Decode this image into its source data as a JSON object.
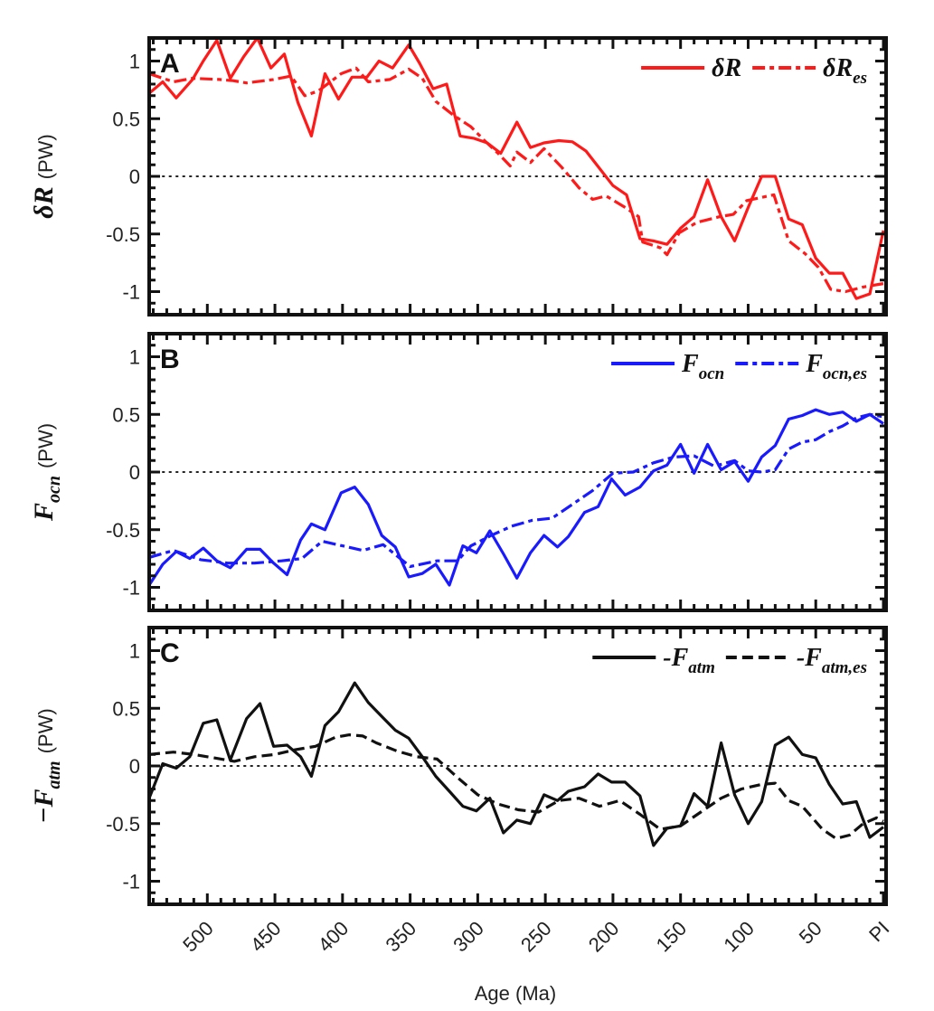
{
  "figure": {
    "xlabel": "Age (Ma)",
    "x_tick_labels": [
      "500",
      "450",
      "400",
      "350",
      "300",
      "250",
      "200",
      "150",
      "100",
      "50",
      "PI"
    ]
  },
  "chart_data": [
    {
      "type": "line",
      "panel": "A",
      "ylabel_symbol": "δR",
      "ylabel_unit": "(PW)",
      "xlabel": "Age (Ma)",
      "xlim": [
        543,
        0
      ],
      "ylim": [
        -1.2,
        1.2
      ],
      "y_ticks": [
        1,
        0.5,
        0,
        -0.5,
        -1
      ],
      "y_tick_labels": [
        "1",
        "0.5",
        "0",
        "-0.5",
        "-1"
      ],
      "zero_line": "dotted",
      "legend_position": "top-right",
      "color": "#ff1a1a",
      "series": [
        {
          "name": "δR",
          "legend_main": "δR",
          "legend_sub": "",
          "style": "solid",
          "x": [
            543,
            533,
            523,
            511,
            503,
            493,
            483,
            473,
            463,
            453,
            443,
            433,
            423,
            413,
            403,
            393,
            382,
            373,
            363,
            351,
            343,
            333,
            323,
            313,
            303,
            293,
            283,
            271,
            261,
            251,
            240,
            230,
            220,
            210,
            200,
            190,
            180,
            170,
            160,
            150,
            140,
            130,
            120,
            110,
            100,
            90,
            80,
            70,
            60,
            50,
            40,
            30,
            20,
            10,
            0
          ],
          "y": [
            0.72,
            0.82,
            0.68,
            0.84,
            1.0,
            1.18,
            0.85,
            1.04,
            1.2,
            0.94,
            1.06,
            0.64,
            0.35,
            0.89,
            0.67,
            0.86,
            0.86,
            1.0,
            0.94,
            1.14,
            0.98,
            0.76,
            0.8,
            0.35,
            0.33,
            0.29,
            0.2,
            0.47,
            0.25,
            0.29,
            0.31,
            0.3,
            0.22,
            0.07,
            -0.08,
            -0.16,
            -0.54,
            -0.56,
            -0.59,
            -0.45,
            -0.35,
            -0.03,
            -0.35,
            -0.56,
            -0.27,
            0.0,
            0.0,
            -0.37,
            -0.42,
            -0.71,
            -0.84,
            -0.84,
            -1.06,
            -1.02,
            -0.47
          ]
        },
        {
          "name": "δR_es",
          "legend_main": "δR",
          "legend_sub": "es",
          "style": "dashdot",
          "x": [
            543,
            525,
            511,
            491,
            481,
            471,
            451,
            438,
            428,
            418,
            401,
            390,
            381,
            365,
            351,
            341,
            331,
            318,
            305,
            295,
            285,
            276,
            271,
            261,
            251,
            238,
            225,
            215,
            205,
            191,
            181,
            178,
            165,
            160,
            151,
            138,
            121,
            111,
            101,
            81,
            70,
            58,
            48,
            39,
            28,
            15,
            0
          ],
          "y": [
            0.89,
            0.82,
            0.85,
            0.84,
            0.83,
            0.81,
            0.84,
            0.87,
            0.7,
            0.74,
            0.89,
            0.94,
            0.82,
            0.84,
            0.93,
            0.85,
            0.65,
            0.53,
            0.43,
            0.31,
            0.2,
            0.09,
            0.21,
            0.12,
            0.24,
            0.08,
            -0.1,
            -0.2,
            -0.17,
            -0.27,
            -0.35,
            -0.57,
            -0.62,
            -0.68,
            -0.49,
            -0.4,
            -0.35,
            -0.33,
            -0.21,
            -0.16,
            -0.56,
            -0.67,
            -0.79,
            -0.98,
            -1.0,
            -0.96,
            -0.93
          ]
        }
      ]
    },
    {
      "type": "line",
      "panel": "B",
      "ylabel_symbol": "F",
      "ylabel_sub": "ocn",
      "ylabel_unit": "(PW)",
      "xlabel": "Age (Ma)",
      "xlim": [
        543,
        0
      ],
      "ylim": [
        -1.2,
        1.2
      ],
      "y_ticks": [
        1,
        0.5,
        0,
        -0.5,
        -1
      ],
      "y_tick_labels": [
        "1",
        "0.5",
        "0",
        "-0.5",
        "-1"
      ],
      "zero_line": "dotted",
      "legend_position": "top-right",
      "color": "#1a1aff",
      "series": [
        {
          "name": "F_ocn",
          "legend_main": "F",
          "legend_sub": "ocn",
          "style": "solid",
          "x": [
            543,
            533,
            523,
            513,
            503,
            493,
            483,
            471,
            461,
            451,
            441,
            431,
            423,
            413,
            401,
            391,
            381,
            371,
            361,
            351,
            341,
            331,
            321,
            311,
            301,
            291,
            281,
            271,
            261,
            251,
            241,
            233,
            221,
            211,
            201,
            191,
            180,
            170,
            160,
            150,
            140,
            130,
            120,
            110,
            100,
            90,
            80,
            70,
            60,
            50,
            40,
            30,
            20,
            10,
            0
          ],
          "y": [
            -0.98,
            -0.8,
            -0.69,
            -0.75,
            -0.66,
            -0.77,
            -0.83,
            -0.67,
            -0.67,
            -0.79,
            -0.89,
            -0.59,
            -0.45,
            -0.5,
            -0.18,
            -0.13,
            -0.28,
            -0.55,
            -0.65,
            -0.91,
            -0.88,
            -0.8,
            -0.98,
            -0.64,
            -0.7,
            -0.51,
            -0.71,
            -0.92,
            -0.7,
            -0.55,
            -0.65,
            -0.56,
            -0.35,
            -0.3,
            -0.06,
            -0.2,
            -0.13,
            0.01,
            0.06,
            0.24,
            -0.01,
            0.24,
            0.02,
            0.09,
            -0.08,
            0.13,
            0.23,
            0.46,
            0.49,
            0.54,
            0.5,
            0.52,
            0.44,
            0.5,
            0.42
          ]
        },
        {
          "name": "F_ocn,es",
          "legend_main": "F",
          "legend_sub": "ocn,es",
          "style": "dashdot",
          "x": [
            543,
            525,
            505,
            485,
            465,
            445,
            430,
            415,
            400,
            385,
            370,
            350,
            330,
            315,
            305,
            290,
            275,
            260,
            245,
            230,
            215,
            200,
            185,
            170,
            155,
            140,
            125,
            110,
            100,
            90,
            80,
            70,
            60,
            50,
            40,
            30,
            20,
            10,
            0
          ],
          "y": [
            -0.74,
            -0.68,
            -0.76,
            -0.79,
            -0.79,
            -0.77,
            -0.75,
            -0.6,
            -0.64,
            -0.68,
            -0.63,
            -0.82,
            -0.77,
            -0.77,
            -0.64,
            -0.55,
            -0.47,
            -0.42,
            -0.4,
            -0.28,
            -0.16,
            -0.01,
            0.0,
            0.08,
            0.13,
            0.14,
            0.05,
            0.1,
            0.01,
            0.0,
            0.02,
            0.2,
            0.26,
            0.28,
            0.35,
            0.4,
            0.47,
            0.5,
            0.48
          ]
        }
      ]
    },
    {
      "type": "line",
      "panel": "C",
      "ylabel_symbol": "−F",
      "ylabel_sub": "atm",
      "ylabel_unit": "(PW)",
      "xlabel": "Age (Ma)",
      "xlim": [
        543,
        0
      ],
      "ylim": [
        -1.2,
        1.2
      ],
      "y_ticks": [
        1,
        0.5,
        0,
        -0.5,
        -1
      ],
      "y_tick_labels": [
        "1",
        "0.5",
        "0",
        "-0.5",
        "-1"
      ],
      "zero_line": "dotted",
      "legend_position": "top-right",
      "color": "#111111",
      "series": [
        {
          "name": "-F_atm",
          "legend_main": "-F",
          "legend_sub": "atm",
          "style": "solid",
          "x": [
            543,
            533,
            523,
            513,
            503,
            493,
            483,
            471,
            461,
            451,
            441,
            431,
            423,
            413,
            403,
            391,
            381,
            371,
            361,
            351,
            341,
            331,
            321,
            311,
            301,
            291,
            281,
            271,
            261,
            251,
            241,
            233,
            221,
            211,
            201,
            191,
            180,
            170,
            160,
            150,
            140,
            130,
            120,
            110,
            100,
            90,
            80,
            70,
            60,
            50,
            40,
            30,
            20,
            10,
            0
          ],
          "y": [
            -0.28,
            0.02,
            -0.02,
            0.08,
            0.37,
            0.4,
            0.05,
            0.41,
            0.54,
            0.17,
            0.18,
            0.08,
            -0.09,
            0.35,
            0.47,
            0.72,
            0.55,
            0.43,
            0.31,
            0.24,
            0.08,
            -0.09,
            -0.22,
            -0.35,
            -0.39,
            -0.28,
            -0.58,
            -0.47,
            -0.5,
            -0.25,
            -0.3,
            -0.22,
            -0.18,
            -0.07,
            -0.14,
            -0.14,
            -0.26,
            -0.69,
            -0.54,
            -0.52,
            -0.24,
            -0.35,
            0.2,
            -0.25,
            -0.5,
            -0.31,
            0.18,
            0.25,
            0.1,
            0.07,
            -0.16,
            -0.33,
            -0.31,
            -0.62,
            -0.53
          ]
        },
        {
          "name": "-F_atm,es",
          "legend_main": "-F",
          "legend_sub": "atm,es",
          "style": "dashed",
          "x": [
            543,
            525,
            510,
            495,
            480,
            465,
            450,
            435,
            420,
            405,
            395,
            385,
            375,
            360,
            345,
            330,
            315,
            300,
            285,
            270,
            255,
            240,
            225,
            210,
            195,
            180,
            165,
            150,
            135,
            120,
            105,
            90,
            80,
            70,
            60,
            45,
            35,
            25,
            15,
            5,
            0
          ],
          "y": [
            0.1,
            0.12,
            0.1,
            0.07,
            0.04,
            0.08,
            0.1,
            0.14,
            0.17,
            0.25,
            0.27,
            0.26,
            0.2,
            0.13,
            0.08,
            0.06,
            -0.1,
            -0.25,
            -0.33,
            -0.38,
            -0.4,
            -0.3,
            -0.28,
            -0.35,
            -0.3,
            -0.42,
            -0.55,
            -0.52,
            -0.4,
            -0.28,
            -0.2,
            -0.16,
            -0.15,
            -0.3,
            -0.35,
            -0.55,
            -0.63,
            -0.6,
            -0.5,
            -0.45,
            -0.48
          ]
        }
      ]
    }
  ]
}
